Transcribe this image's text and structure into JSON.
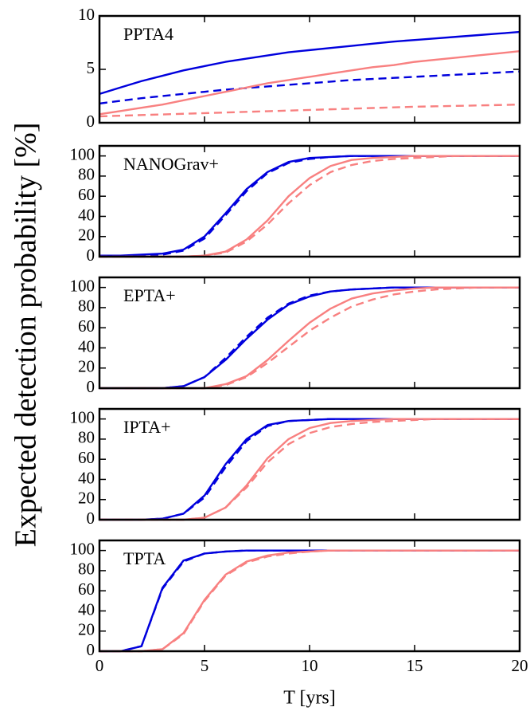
{
  "ylabel": "Expected detection probability [%]",
  "chart_data": [
    {
      "type": "line",
      "title": "PPTA4",
      "x": [
        0,
        1,
        2,
        3,
        4,
        5,
        6,
        7,
        8,
        9,
        10,
        11,
        12,
        13,
        14,
        15,
        16,
        17,
        18,
        19,
        20
      ],
      "series": [
        {
          "color": "#0000dd",
          "dashed": false,
          "values": [
            2.7,
            3.3,
            3.9,
            4.4,
            4.9,
            5.3,
            5.7,
            6.0,
            6.3,
            6.6,
            6.8,
            7.0,
            7.2,
            7.4,
            7.6,
            7.75,
            7.9,
            8.05,
            8.2,
            8.35,
            8.5
          ]
        },
        {
          "color": "#0000dd",
          "dashed": true,
          "values": [
            1.8,
            2.05,
            2.3,
            2.5,
            2.7,
            2.9,
            3.1,
            3.25,
            3.4,
            3.55,
            3.7,
            3.85,
            4.0,
            4.1,
            4.2,
            4.3,
            4.4,
            4.5,
            4.6,
            4.7,
            4.8
          ]
        },
        {
          "color": "#f88080",
          "dashed": false,
          "values": [
            0.8,
            1.1,
            1.4,
            1.7,
            2.1,
            2.5,
            2.9,
            3.3,
            3.7,
            4.0,
            4.3,
            4.6,
            4.9,
            5.2,
            5.4,
            5.7,
            5.9,
            6.1,
            6.3,
            6.5,
            6.7
          ]
        },
        {
          "color": "#f88080",
          "dashed": true,
          "values": [
            0.6,
            0.66,
            0.72,
            0.78,
            0.84,
            0.9,
            0.96,
            1.02,
            1.08,
            1.14,
            1.2,
            1.26,
            1.32,
            1.38,
            1.44,
            1.5,
            1.54,
            1.58,
            1.62,
            1.66,
            1.7
          ]
        }
      ],
      "xlim": [
        0,
        20
      ],
      "xticks": [
        0,
        5,
        10,
        15,
        20
      ],
      "ylim": [
        0,
        10
      ],
      "yticks": [
        0,
        5,
        10
      ]
    },
    {
      "type": "line",
      "title": "NANOGrav+",
      "x": [
        0,
        1,
        2,
        3,
        4,
        5,
        6,
        7,
        8,
        9,
        10,
        11,
        12,
        13,
        14,
        15,
        16,
        17,
        18,
        19,
        20
      ],
      "series": [
        {
          "color": "#0000dd",
          "dashed": false,
          "values": [
            1,
            1,
            2,
            3,
            7,
            20,
            43,
            67,
            84,
            94,
            98,
            99,
            100,
            100,
            100,
            100,
            100,
            100,
            100,
            100,
            100
          ]
        },
        {
          "color": "#0000dd",
          "dashed": true,
          "values": [
            1,
            1,
            1,
            2,
            6,
            18,
            41,
            65,
            83,
            93,
            97,
            99,
            100,
            100,
            100,
            100,
            100,
            100,
            100,
            100,
            100
          ]
        },
        {
          "color": "#f88080",
          "dashed": false,
          "values": [
            0,
            0,
            0,
            0,
            0,
            1,
            5,
            17,
            36,
            60,
            78,
            90,
            96,
            98,
            99,
            100,
            100,
            100,
            100,
            100,
            100
          ]
        },
        {
          "color": "#f88080",
          "dashed": true,
          "values": [
            0,
            0,
            0,
            0,
            0,
            1,
            4,
            15,
            32,
            53,
            71,
            84,
            91,
            95,
            97,
            98,
            99,
            100,
            100,
            100,
            100
          ]
        }
      ],
      "xlim": [
        0,
        20
      ],
      "xticks": [
        0,
        5,
        10,
        15,
        20
      ],
      "ylim": [
        0,
        110
      ],
      "yticks": [
        0,
        20,
        40,
        60,
        80,
        100
      ]
    },
    {
      "type": "line",
      "title": "EPTA+",
      "x": [
        0,
        1,
        2,
        3,
        4,
        5,
        6,
        7,
        8,
        9,
        10,
        11,
        12,
        13,
        14,
        15,
        16,
        17,
        18,
        19,
        20
      ],
      "series": [
        {
          "color": "#0000dd",
          "dashed": false,
          "values": [
            0,
            0,
            0,
            0,
            2,
            11,
            28,
            49,
            68,
            83,
            91,
            96,
            98,
            99,
            100,
            100,
            100,
            100,
            100,
            100,
            100
          ]
        },
        {
          "color": "#0000dd",
          "dashed": true,
          "values": [
            0,
            0,
            0,
            0,
            2,
            11,
            30,
            51,
            70,
            84,
            92,
            96,
            98,
            99,
            100,
            100,
            100,
            100,
            100,
            100,
            100
          ]
        },
        {
          "color": "#f88080",
          "dashed": false,
          "values": [
            0,
            0,
            0,
            0,
            0,
            0,
            4,
            12,
            28,
            47,
            65,
            79,
            89,
            94,
            97,
            99,
            100,
            100,
            100,
            100,
            100
          ]
        },
        {
          "color": "#f88080",
          "dashed": true,
          "values": [
            0,
            0,
            0,
            0,
            0,
            0,
            3,
            11,
            25,
            41,
            57,
            70,
            81,
            88,
            93,
            96,
            98,
            99,
            100,
            100,
            100
          ]
        }
      ],
      "xlim": [
        0,
        20
      ],
      "xticks": [
        0,
        5,
        10,
        15,
        20
      ],
      "ylim": [
        0,
        110
      ],
      "yticks": [
        0,
        20,
        40,
        60,
        80,
        100
      ]
    },
    {
      "type": "line",
      "title": "IPTA+",
      "x": [
        0,
        1,
        2,
        3,
        4,
        5,
        6,
        7,
        8,
        9,
        10,
        11,
        12,
        13,
        14,
        15,
        16,
        17,
        18,
        19,
        20
      ],
      "series": [
        {
          "color": "#0000dd",
          "dashed": false,
          "values": [
            0,
            0,
            0,
            1,
            6,
            24,
            55,
            80,
            94,
            98,
            99,
            100,
            100,
            100,
            100,
            100,
            100,
            100,
            100,
            100,
            100
          ]
        },
        {
          "color": "#0000dd",
          "dashed": true,
          "values": [
            0,
            0,
            0,
            1,
            6,
            22,
            52,
            78,
            93,
            98,
            99,
            100,
            100,
            100,
            100,
            100,
            100,
            100,
            100,
            100,
            100
          ]
        },
        {
          "color": "#f88080",
          "dashed": false,
          "values": [
            0,
            0,
            0,
            0,
            0,
            2,
            12,
            34,
            61,
            80,
            91,
            96,
            98,
            99,
            100,
            100,
            100,
            100,
            100,
            100,
            100
          ]
        },
        {
          "color": "#f88080",
          "dashed": true,
          "values": [
            0,
            0,
            0,
            0,
            0,
            2,
            12,
            32,
            57,
            75,
            86,
            92,
            95,
            97,
            98,
            99,
            100,
            100,
            100,
            100,
            100
          ]
        }
      ],
      "xlim": [
        0,
        20
      ],
      "xticks": [
        0,
        5,
        10,
        15,
        20
      ],
      "ylim": [
        0,
        110
      ],
      "yticks": [
        0,
        20,
        40,
        60,
        80,
        100
      ]
    },
    {
      "type": "line",
      "title": "TPTA",
      "x": [
        0,
        1,
        2,
        3,
        4,
        5,
        6,
        7,
        8,
        9,
        10,
        11,
        12,
        13,
        14,
        15,
        16,
        17,
        18,
        19,
        20
      ],
      "series": [
        {
          "color": "#0000dd",
          "dashed": false,
          "values": [
            0,
            0,
            5,
            63,
            90,
            97,
            99,
            100,
            100,
            100,
            100,
            100,
            100,
            100,
            100,
            100,
            100,
            100,
            100,
            100,
            100
          ]
        },
        {
          "color": "#0000dd",
          "dashed": true,
          "values": [
            0,
            0,
            5,
            62,
            89,
            97,
            99,
            100,
            100,
            100,
            100,
            100,
            100,
            100,
            100,
            100,
            100,
            100,
            100,
            100,
            100
          ]
        },
        {
          "color": "#f88080",
          "dashed": false,
          "values": [
            0,
            0,
            0,
            2,
            18,
            51,
            76,
            89,
            95,
            98,
            99,
            100,
            100,
            100,
            100,
            100,
            100,
            100,
            100,
            100,
            100
          ]
        },
        {
          "color": "#f88080",
          "dashed": true,
          "values": [
            0,
            0,
            0,
            2,
            17,
            50,
            75,
            88,
            94,
            97,
            99,
            100,
            100,
            100,
            100,
            100,
            100,
            100,
            100,
            100,
            100
          ]
        }
      ],
      "xlim": [
        0,
        20
      ],
      "xticks": [
        0,
        5,
        10,
        15,
        20
      ],
      "ylim": [
        0,
        110
      ],
      "yticks": [
        0,
        20,
        40,
        60,
        80,
        100
      ],
      "xlabel": "T [yrs]"
    }
  ]
}
